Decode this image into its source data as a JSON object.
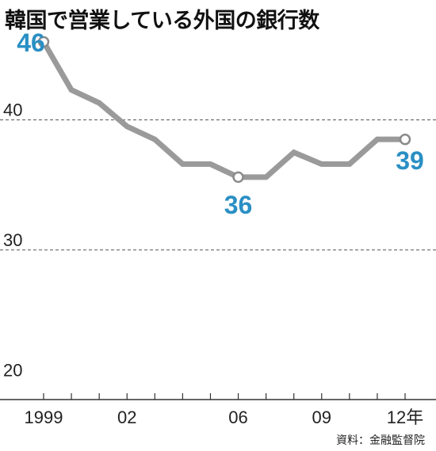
{
  "title": "韓国で営業している外国の銀行数",
  "source": "資料：金融監督院",
  "chart_data": {
    "type": "line",
    "title": "韓国で営業している外国の銀行数",
    "x": [
      1999,
      2000,
      2001,
      2002,
      2003,
      2004,
      2005,
      2006,
      2007,
      2008,
      2009,
      2010,
      2011,
      2012
    ],
    "xticks": [
      1999,
      2002,
      2006,
      2009,
      2012
    ],
    "xtick_labels": [
      "1999",
      "02",
      "06",
      "09",
      "12年"
    ],
    "series": [
      {
        "values": [
          46,
          42.3,
          41.3,
          39.5,
          38.5,
          36.6,
          36.6,
          35.6,
          35.6,
          37.5,
          36.6,
          36.6,
          38.5,
          38.5
        ]
      }
    ],
    "yticks": [
      20,
      30,
      40
    ],
    "ylim": [
      18.5,
      48
    ],
    "gridlines": [
      30,
      40
    ],
    "annotations": [
      {
        "x": 1999,
        "label": "46"
      },
      {
        "x": 2006,
        "label": "36"
      },
      {
        "x": 2012,
        "label": "39"
      }
    ],
    "line_color": "#9a9a9a",
    "annotation_color": "#2a8fc4"
  }
}
